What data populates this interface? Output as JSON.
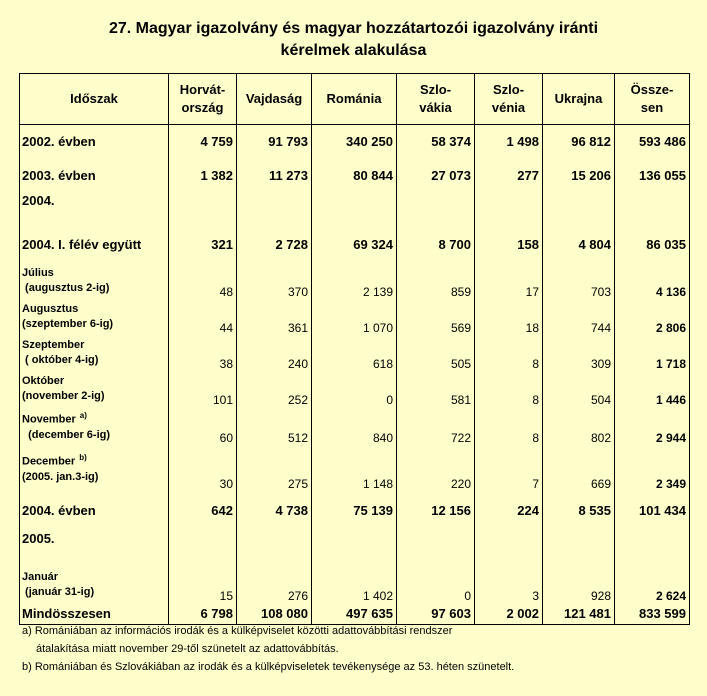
{
  "title_line1": "27. Magyar igazolvány és magyar hozzátartozói igazolvány iránti",
  "title_line2": "kérelmek alakulása",
  "columns": [
    "Időszak",
    "Horvát-\nország",
    "Vajdaság",
    "Románia",
    "Szlo-\nvákia",
    "Szlo-\nvénia",
    "Ukrajna",
    "Össze-\nsen"
  ],
  "rows": [
    {
      "label1": "2002. évben",
      "label2": "",
      "sup": "",
      "values": [
        "4 759",
        "91 793",
        "340 250",
        "58 374",
        "1 498",
        "96 812",
        "593 486"
      ],
      "bold": true
    },
    {
      "label1": "2003. évben",
      "label2": "",
      "sup": "",
      "values": [
        "1 382",
        "11 273",
        "80 844",
        "27 073",
        "277",
        "15 206",
        "136 055"
      ],
      "bold": true
    },
    {
      "label1": "2004.",
      "label2": "",
      "sup": "",
      "values": [
        "",
        "",
        "",
        "",
        "",
        "",
        ""
      ],
      "bold": true
    },
    {
      "label1": "2004. I. félév együtt",
      "label2": "",
      "sup": "",
      "values": [
        "321",
        "2 728",
        "69 324",
        "8 700",
        "158",
        "4 804",
        "86 035"
      ],
      "bold": true
    },
    {
      "label1": "Július",
      "label2": " (augusztus 2-ig)",
      "sup": "",
      "values": [
        "48",
        "370",
        "2 139",
        "859",
        "17",
        "703",
        "4 136"
      ],
      "bold": false
    },
    {
      "label1": "Augusztus",
      "label2": "(szeptember 6-ig)",
      "sup": "",
      "values": [
        "44",
        "361",
        "1 070",
        "569",
        "18",
        "744",
        "2 806"
      ],
      "bold": false
    },
    {
      "label1": "Szeptember",
      "label2": " ( október 4-ig)",
      "sup": "",
      "values": [
        "38",
        "240",
        "618",
        "505",
        "8",
        "309",
        "1 718"
      ],
      "bold": false
    },
    {
      "label1": "Október",
      "label2": "(november 2-ig)",
      "sup": "",
      "values": [
        "101",
        "252",
        "0",
        "581",
        "8",
        "504",
        "1 446"
      ],
      "bold": false
    },
    {
      "label1": "November",
      "label2": "  (december 6-ig)",
      "sup": "a)",
      "values": [
        "60",
        "512",
        "840",
        "722",
        "8",
        "802",
        "2 944"
      ],
      "bold": false
    },
    {
      "label1": "December",
      "label2": "(2005. jan.3-ig)",
      "sup": "b)",
      "values": [
        "30",
        "275",
        "1 148",
        "220",
        "7",
        "669",
        "2 349"
      ],
      "bold": false
    },
    {
      "label1": "2004. évben",
      "label2": "",
      "sup": "",
      "values": [
        "642",
        "4 738",
        "75 139",
        "12 156",
        "224",
        "8 535",
        "101 434"
      ],
      "bold": true
    },
    {
      "label1": "2005.",
      "label2": "",
      "sup": "",
      "values": [
        "",
        "",
        "",
        "",
        "",
        "",
        ""
      ],
      "bold": true
    },
    {
      "label1": "Január",
      "label2": " (január 31-ig)",
      "sup": "",
      "values": [
        "15",
        "276",
        "1 402",
        "0",
        "3",
        "928",
        "2 624"
      ],
      "bold": false
    },
    {
      "label1": "Mindösszesen",
      "label2": "",
      "sup": "",
      "values": [
        "6 798",
        "108 080",
        "497 635",
        "97 603",
        "2 002",
        "121 481",
        "833 599"
      ],
      "bold": true
    }
  ],
  "note_a_line1": "a) Romániában az információs irodák és a külképviselet közötti adattovábbítási rendszer",
  "note_a_line2": "átalakítása miatt november 29-től szünetelt az adattovábbítás.",
  "note_b": "b) Romániában és Szlovákiában az irodák és a külképviseletek tevékenysége az 53. héten szünetelt."
}
